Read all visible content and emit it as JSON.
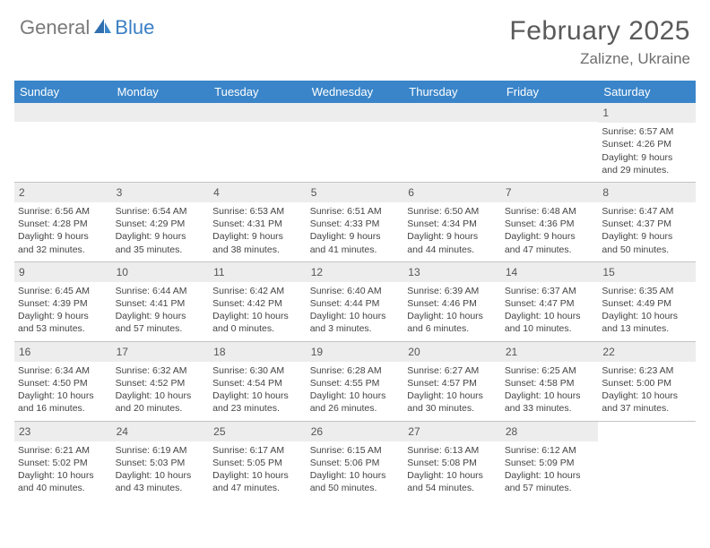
{
  "brand": {
    "part1": "General",
    "part2": "Blue"
  },
  "title": "February 2025",
  "location": "Zalizne, Ukraine",
  "colors": {
    "header_bar": "#3a85c9",
    "daynum_bg": "#ededed",
    "text": "#444444",
    "brand_gray": "#7a7a7a",
    "brand_blue": "#3a7fc4"
  },
  "daysOfWeek": [
    "Sunday",
    "Monday",
    "Tuesday",
    "Wednesday",
    "Thursday",
    "Friday",
    "Saturday"
  ],
  "weeks": [
    [
      {
        "empty": true
      },
      {
        "empty": true
      },
      {
        "empty": true
      },
      {
        "empty": true
      },
      {
        "empty": true
      },
      {
        "empty": true
      },
      {
        "n": "1",
        "sr": "Sunrise: 6:57 AM",
        "ss": "Sunset: 4:26 PM",
        "d1": "Daylight: 9 hours",
        "d2": "and 29 minutes."
      }
    ],
    [
      {
        "n": "2",
        "sr": "Sunrise: 6:56 AM",
        "ss": "Sunset: 4:28 PM",
        "d1": "Daylight: 9 hours",
        "d2": "and 32 minutes."
      },
      {
        "n": "3",
        "sr": "Sunrise: 6:54 AM",
        "ss": "Sunset: 4:29 PM",
        "d1": "Daylight: 9 hours",
        "d2": "and 35 minutes."
      },
      {
        "n": "4",
        "sr": "Sunrise: 6:53 AM",
        "ss": "Sunset: 4:31 PM",
        "d1": "Daylight: 9 hours",
        "d2": "and 38 minutes."
      },
      {
        "n": "5",
        "sr": "Sunrise: 6:51 AM",
        "ss": "Sunset: 4:33 PM",
        "d1": "Daylight: 9 hours",
        "d2": "and 41 minutes."
      },
      {
        "n": "6",
        "sr": "Sunrise: 6:50 AM",
        "ss": "Sunset: 4:34 PM",
        "d1": "Daylight: 9 hours",
        "d2": "and 44 minutes."
      },
      {
        "n": "7",
        "sr": "Sunrise: 6:48 AM",
        "ss": "Sunset: 4:36 PM",
        "d1": "Daylight: 9 hours",
        "d2": "and 47 minutes."
      },
      {
        "n": "8",
        "sr": "Sunrise: 6:47 AM",
        "ss": "Sunset: 4:37 PM",
        "d1": "Daylight: 9 hours",
        "d2": "and 50 minutes."
      }
    ],
    [
      {
        "n": "9",
        "sr": "Sunrise: 6:45 AM",
        "ss": "Sunset: 4:39 PM",
        "d1": "Daylight: 9 hours",
        "d2": "and 53 minutes."
      },
      {
        "n": "10",
        "sr": "Sunrise: 6:44 AM",
        "ss": "Sunset: 4:41 PM",
        "d1": "Daylight: 9 hours",
        "d2": "and 57 minutes."
      },
      {
        "n": "11",
        "sr": "Sunrise: 6:42 AM",
        "ss": "Sunset: 4:42 PM",
        "d1": "Daylight: 10 hours",
        "d2": "and 0 minutes."
      },
      {
        "n": "12",
        "sr": "Sunrise: 6:40 AM",
        "ss": "Sunset: 4:44 PM",
        "d1": "Daylight: 10 hours",
        "d2": "and 3 minutes."
      },
      {
        "n": "13",
        "sr": "Sunrise: 6:39 AM",
        "ss": "Sunset: 4:46 PM",
        "d1": "Daylight: 10 hours",
        "d2": "and 6 minutes."
      },
      {
        "n": "14",
        "sr": "Sunrise: 6:37 AM",
        "ss": "Sunset: 4:47 PM",
        "d1": "Daylight: 10 hours",
        "d2": "and 10 minutes."
      },
      {
        "n": "15",
        "sr": "Sunrise: 6:35 AM",
        "ss": "Sunset: 4:49 PM",
        "d1": "Daylight: 10 hours",
        "d2": "and 13 minutes."
      }
    ],
    [
      {
        "n": "16",
        "sr": "Sunrise: 6:34 AM",
        "ss": "Sunset: 4:50 PM",
        "d1": "Daylight: 10 hours",
        "d2": "and 16 minutes."
      },
      {
        "n": "17",
        "sr": "Sunrise: 6:32 AM",
        "ss": "Sunset: 4:52 PM",
        "d1": "Daylight: 10 hours",
        "d2": "and 20 minutes."
      },
      {
        "n": "18",
        "sr": "Sunrise: 6:30 AM",
        "ss": "Sunset: 4:54 PM",
        "d1": "Daylight: 10 hours",
        "d2": "and 23 minutes."
      },
      {
        "n": "19",
        "sr": "Sunrise: 6:28 AM",
        "ss": "Sunset: 4:55 PM",
        "d1": "Daylight: 10 hours",
        "d2": "and 26 minutes."
      },
      {
        "n": "20",
        "sr": "Sunrise: 6:27 AM",
        "ss": "Sunset: 4:57 PM",
        "d1": "Daylight: 10 hours",
        "d2": "and 30 minutes."
      },
      {
        "n": "21",
        "sr": "Sunrise: 6:25 AM",
        "ss": "Sunset: 4:58 PM",
        "d1": "Daylight: 10 hours",
        "d2": "and 33 minutes."
      },
      {
        "n": "22",
        "sr": "Sunrise: 6:23 AM",
        "ss": "Sunset: 5:00 PM",
        "d1": "Daylight: 10 hours",
        "d2": "and 37 minutes."
      }
    ],
    [
      {
        "n": "23",
        "sr": "Sunrise: 6:21 AM",
        "ss": "Sunset: 5:02 PM",
        "d1": "Daylight: 10 hours",
        "d2": "and 40 minutes."
      },
      {
        "n": "24",
        "sr": "Sunrise: 6:19 AM",
        "ss": "Sunset: 5:03 PM",
        "d1": "Daylight: 10 hours",
        "d2": "and 43 minutes."
      },
      {
        "n": "25",
        "sr": "Sunrise: 6:17 AM",
        "ss": "Sunset: 5:05 PM",
        "d1": "Daylight: 10 hours",
        "d2": "and 47 minutes."
      },
      {
        "n": "26",
        "sr": "Sunrise: 6:15 AM",
        "ss": "Sunset: 5:06 PM",
        "d1": "Daylight: 10 hours",
        "d2": "and 50 minutes."
      },
      {
        "n": "27",
        "sr": "Sunrise: 6:13 AM",
        "ss": "Sunset: 5:08 PM",
        "d1": "Daylight: 10 hours",
        "d2": "and 54 minutes."
      },
      {
        "n": "28",
        "sr": "Sunrise: 6:12 AM",
        "ss": "Sunset: 5:09 PM",
        "d1": "Daylight: 10 hours",
        "d2": "and 57 minutes."
      },
      {
        "empty": true,
        "noBar": true
      }
    ]
  ]
}
